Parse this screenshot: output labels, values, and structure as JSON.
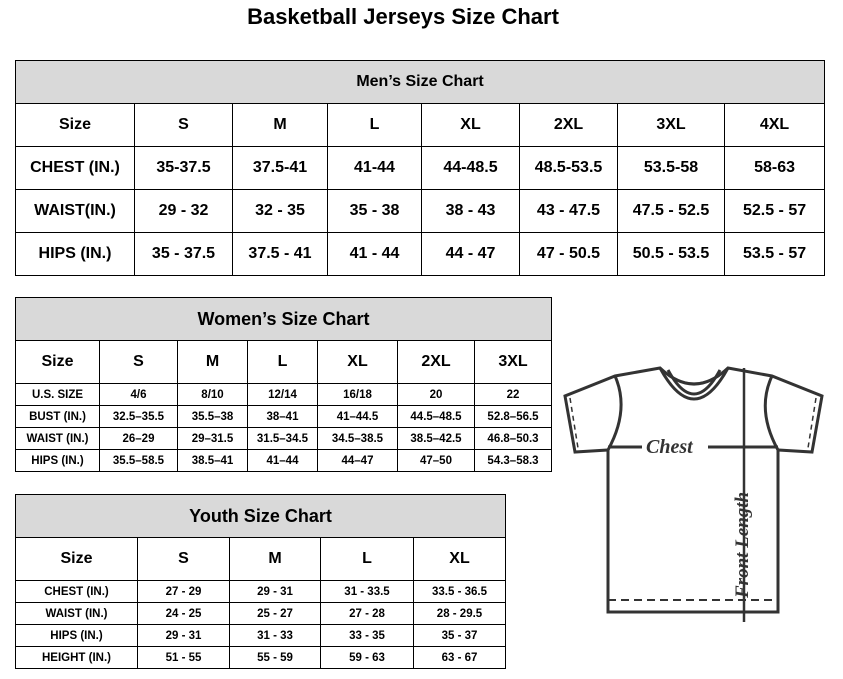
{
  "title": "Basketball Jerseys Size Chart",
  "men": {
    "caption": "Men’s Size Chart",
    "header": [
      "Size",
      "S",
      "M",
      "L",
      "XL",
      "2XL",
      "3XL",
      "4XL"
    ],
    "rows": [
      [
        "CHEST (IN.)",
        "35-37.5",
        "37.5-41",
        "41-44",
        "44-48.5",
        "48.5-53.5",
        "53.5-58",
        "58-63"
      ],
      [
        "WAIST(IN.)",
        "29 - 32",
        "32 - 35",
        "35 - 38",
        "38 - 43",
        "43 - 47.5",
        "47.5 - 52.5",
        "52.5 - 57"
      ],
      [
        "HIPS (IN.)",
        "35 - 37.5",
        "37.5 - 41",
        "41 - 44",
        "44 - 47",
        "47 - 50.5",
        "50.5 - 53.5",
        "53.5 - 57"
      ]
    ]
  },
  "women": {
    "caption": "Women’s Size Chart",
    "header": [
      "Size",
      "S",
      "M",
      "L",
      "XL",
      "2XL",
      "3XL"
    ],
    "rows": [
      [
        "U.S. SIZE",
        "4/6",
        "8/10",
        "12/14",
        "16/18",
        "20",
        "22"
      ],
      [
        "BUST (IN.)",
        "32.5–35.5",
        "35.5–38",
        "38–41",
        "41–44.5",
        "44.5–48.5",
        "52.8–56.5"
      ],
      [
        "WAIST (IN.)",
        "26–29",
        "29–31.5",
        "31.5–34.5",
        "34.5–38.5",
        "38.5–42.5",
        "46.8–50.3"
      ],
      [
        "HIPS (IN.)",
        "35.5–58.5",
        "38.5–41",
        "41–44",
        "44–47",
        "47–50",
        "54.3–58.3"
      ]
    ]
  },
  "youth": {
    "caption": "Youth Size Chart",
    "header": [
      "Size",
      "S",
      "M",
      "L",
      "XL"
    ],
    "rows": [
      [
        "CHEST (IN.)",
        "27 - 29",
        "29 - 31",
        "31 - 33.5",
        "33.5 - 36.5"
      ],
      [
        "WAIST (IN.)",
        "24 - 25",
        "25 - 27",
        "27 - 28",
        "28 - 29.5"
      ],
      [
        "HIPS (IN.)",
        "29 - 31",
        "31 - 33",
        "33 - 35",
        "35 - 37"
      ],
      [
        "HEIGHT (IN.)",
        "51 - 55",
        "55 - 59",
        "59 - 63",
        "63 - 67"
      ]
    ]
  },
  "diagram": {
    "chest_label": "Chest",
    "length_label": "Front Length"
  }
}
